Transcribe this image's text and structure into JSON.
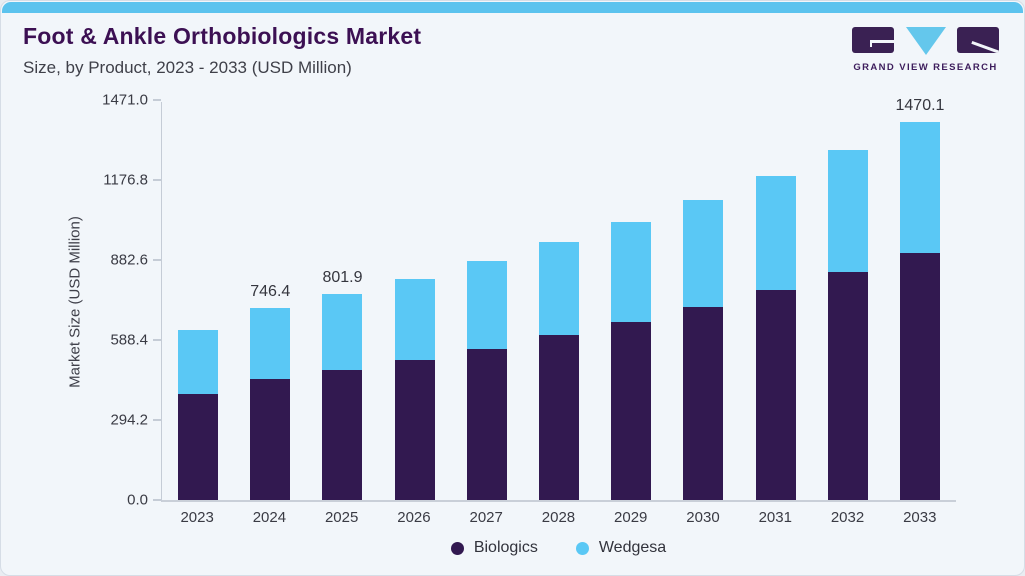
{
  "page": {
    "background": "#f2f6fa",
    "accent_strip_color": "#5cc3ee"
  },
  "header": {
    "title": "Foot & Ankle Orthobiologics Market",
    "subtitle": "Size, by Product, 2023 - 2033 (USD Million)"
  },
  "logo": {
    "text": "GRAND VIEW RESEARCH",
    "purple": "#3a2153",
    "blue": "#64c7ec",
    "text_color": "#3d1d5c"
  },
  "chart_data": {
    "type": "bar",
    "stacked": true,
    "title": "Foot & Ankle Orthobiologics Market Size, by Product, 2023 - 2033 (USD Million)",
    "categories": [
      "2023",
      "2024",
      "2025",
      "2026",
      "2027",
      "2028",
      "2029",
      "2030",
      "2031",
      "2032",
      "2033"
    ],
    "series": [
      {
        "name": "Biologics",
        "color": "#321950",
        "values": [
          414,
          470,
          505,
          546,
          589,
          642,
          693,
          751,
          816,
          887,
          962
        ]
      },
      {
        "name": "Wedgesa",
        "color": "#5ac8f5",
        "values": [
          249,
          276.4,
          296.9,
          313,
          340,
          361,
          389,
          414,
          443,
          473,
          508.1
        ]
      }
    ],
    "totals": [
      663,
      746.4,
      801.9,
      859,
      929,
      1003,
      1082,
      1165,
      1259,
      1360,
      1470.1
    ],
    "bar_labels": {
      "2024": "746.4",
      "2025": "801.9",
      "2033": "1470.1"
    },
    "ylabel": "Market Size (USD Million)",
    "yticks": [
      "0.0",
      "294.2",
      "588.4",
      "882.6",
      "1176.8",
      "1471.0"
    ],
    "ylim": [
      0,
      1471.0
    ],
    "grid": false,
    "legend_position": "bottom",
    "axis_color": "#c5ccd6",
    "label_color": "#3a3b44"
  },
  "legend": {
    "items": [
      {
        "label": "Biologics",
        "color": "#321950"
      },
      {
        "label": "Wedgesa",
        "color": "#5ac8f5"
      }
    ]
  }
}
